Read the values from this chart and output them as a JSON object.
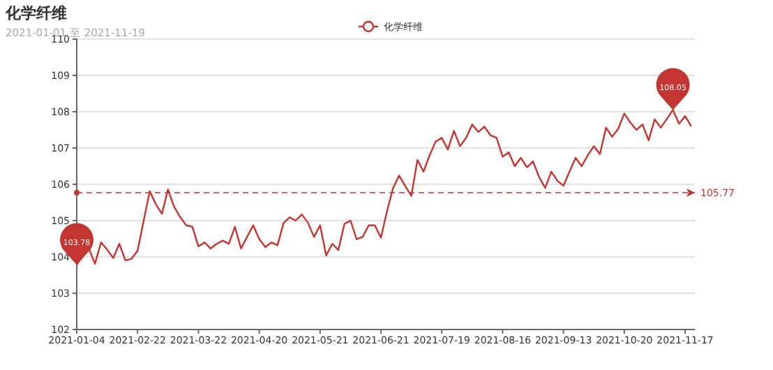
{
  "chart_data": {
    "type": "line",
    "title": "化学纤维",
    "subtitle": "2021-01-01 至 2021-11-19",
    "categories": [
      "2021-01-04",
      null,
      null,
      null,
      null,
      null,
      null,
      null,
      null,
      null,
      "2021-02-22",
      null,
      null,
      null,
      null,
      null,
      null,
      null,
      null,
      null,
      "2021-03-22",
      null,
      null,
      null,
      null,
      null,
      null,
      null,
      null,
      null,
      "2021-04-20",
      null,
      null,
      null,
      null,
      null,
      null,
      null,
      null,
      null,
      "2021-05-21",
      null,
      null,
      null,
      null,
      null,
      null,
      null,
      null,
      null,
      "2021-06-21",
      null,
      null,
      null,
      null,
      null,
      null,
      null,
      null,
      null,
      "2021-07-19",
      null,
      null,
      null,
      null,
      null,
      null,
      null,
      null,
      null,
      "2021-08-16",
      null,
      null,
      null,
      null,
      null,
      null,
      null,
      null,
      null,
      "2021-09-13",
      null,
      null,
      null,
      null,
      null,
      null,
      null,
      null,
      null,
      "2021-10-20",
      null,
      null,
      null,
      null,
      null,
      null,
      null,
      null,
      null,
      "2021-11-17",
      null
    ],
    "series": [
      {
        "name": "化学纤维",
        "color": "#c23531",
        "values": [
          103.78,
          104.04,
          104.23,
          103.81,
          104.4,
          104.2,
          103.97,
          104.36,
          103.9,
          103.95,
          104.17,
          105.0,
          105.81,
          105.45,
          105.19,
          105.86,
          105.38,
          105.1,
          104.87,
          104.83,
          104.29,
          104.4,
          104.23,
          104.36,
          104.45,
          104.36,
          104.83,
          104.23,
          104.55,
          104.87,
          104.49,
          104.27,
          104.4,
          104.32,
          104.94,
          105.09,
          105.0,
          105.17,
          104.94,
          104.55,
          104.87,
          104.04,
          104.36,
          104.19,
          104.91,
          105.0,
          104.49,
          104.55,
          104.87,
          104.87,
          104.53,
          105.26,
          105.9,
          106.24,
          105.95,
          105.68,
          106.67,
          106.35,
          106.8,
          107.18,
          107.28,
          106.96,
          107.47,
          107.05,
          107.28,
          107.65,
          107.44,
          107.59,
          107.35,
          107.28,
          106.76,
          106.88,
          106.5,
          106.73,
          106.47,
          106.63,
          106.2,
          105.9,
          106.35,
          106.1,
          105.96,
          106.35,
          106.73,
          106.5,
          106.8,
          107.05,
          106.83,
          107.56,
          107.31,
          107.53,
          107.95,
          107.7,
          107.5,
          107.65,
          107.21,
          107.79,
          107.56,
          107.8,
          108.05,
          107.67,
          107.88,
          107.6
        ]
      }
    ],
    "ylim": [
      102,
      110
    ],
    "yticks": [
      102,
      103,
      104,
      105,
      106,
      107,
      108,
      109,
      110
    ],
    "grid": "y",
    "legend": "top",
    "ref_lines": [
      {
        "axis": "y",
        "value": 105.77,
        "label": "105.77",
        "color": "#c23531",
        "line_style": "dashed"
      }
    ],
    "annotations": [
      {
        "text": "103.78",
        "x": "2021-01-04",
        "y": 103.78
      },
      {
        "text": "108.05",
        "y": 108.05
      }
    ]
  }
}
